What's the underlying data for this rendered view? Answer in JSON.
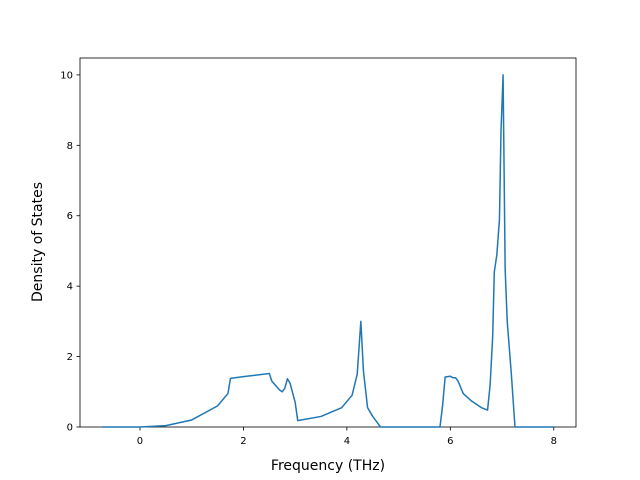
{
  "chart_data": {
    "type": "line",
    "x_label": "Frequency (THz)",
    "y_label": "Density of States",
    "x": [
      -0.73,
      0,
      0.5,
      1.0,
      1.5,
      1.7,
      1.75,
      2.0,
      2.5,
      2.55,
      2.7,
      2.75,
      2.8,
      2.85,
      2.9,
      3.0,
      3.05,
      3.5,
      3.9,
      4.1,
      4.2,
      4.27,
      4.32,
      4.4,
      4.5,
      4.6,
      4.65,
      5.8,
      5.85,
      5.9,
      6.0,
      6.05,
      6.1,
      6.15,
      6.25,
      6.4,
      6.6,
      6.72,
      6.77,
      6.82,
      6.85,
      6.9,
      6.95,
      6.98,
      7.02,
      7.06,
      7.1,
      7.18,
      7.25,
      8.0
    ],
    "series": [
      {
        "color": "#1f77b4",
        "values": [
          0,
          0,
          0.04,
          0.2,
          0.6,
          0.95,
          1.38,
          1.43,
          1.52,
          1.3,
          1.05,
          1.0,
          1.1,
          1.37,
          1.25,
          0.7,
          0.18,
          0.3,
          0.55,
          0.9,
          1.5,
          3.0,
          1.6,
          0.55,
          0.3,
          0.1,
          0,
          0,
          0.6,
          1.42,
          1.44,
          1.4,
          1.4,
          1.3,
          0.95,
          0.75,
          0.55,
          0.48,
          1.2,
          2.6,
          4.4,
          4.9,
          5.9,
          8.4,
          10.0,
          4.5,
          3.0,
          1.5,
          0,
          0
        ]
      }
    ],
    "xlim": [
      -1.16,
      8.43
    ],
    "ylim": [
      0,
      10.48
    ],
    "xticks": [
      0,
      2,
      4,
      6,
      8
    ],
    "yticks": [
      0,
      2,
      4,
      6,
      8,
      10
    ],
    "grid": false
  }
}
